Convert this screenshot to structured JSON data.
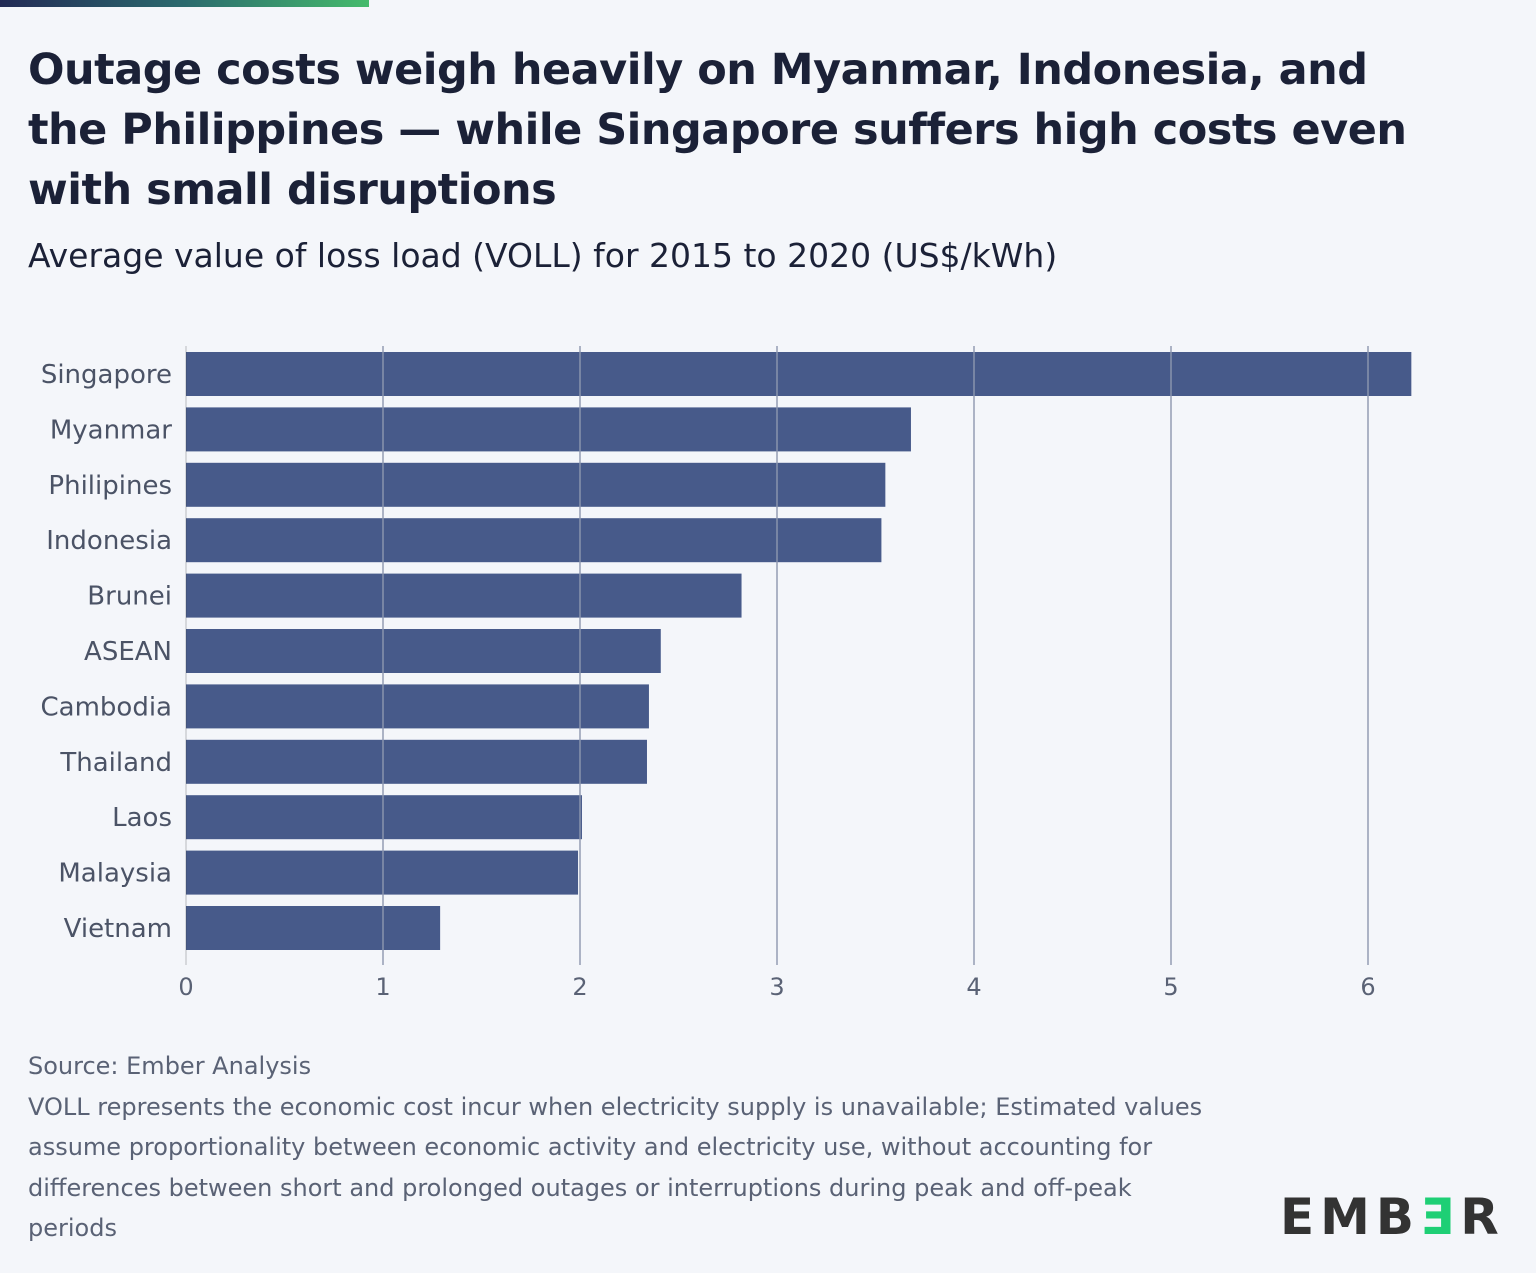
{
  "title": "Outage costs weigh heavily on Myanmar, Indonesia, and the Philippines — while Singapore suffers high costs even with small disruptions",
  "subtitle": "Average value of loss load (VOLL) for 2015 to 2020 (US$/kWh)",
  "footer": {
    "source": "Source: Ember Analysis",
    "note": "VOLL represents the economic cost incur when electricity supply is unavailable; Estimated values assume proportionality between economic activity and electricity use, without accounting for differences between short and prolonged outages or interruptions during peak and off-peak periods"
  },
  "logo": "EMBER",
  "colors": {
    "bar": "#475a8a",
    "grid": "#8e98b0",
    "accent_gradient": [
      "#222a55",
      "#45bb6c"
    ],
    "logo_accent": "#1ecf75"
  },
  "chart_data": {
    "type": "bar",
    "orientation": "horizontal",
    "categories": [
      "Singapore",
      "Myanmar",
      "Philipines",
      "Indonesia",
      "Brunei",
      "ASEAN",
      "Cambodia",
      "Thailand",
      "Laos",
      "Malaysia",
      "Vietnam"
    ],
    "values": [
      6.22,
      3.68,
      3.55,
      3.53,
      2.82,
      2.41,
      2.35,
      2.34,
      2.01,
      1.99,
      1.29
    ],
    "xlim": [
      0,
      6.5
    ],
    "xticks": [
      0,
      1,
      2,
      3,
      4,
      5,
      6
    ],
    "grid": true,
    "xlabel": "",
    "ylabel": ""
  }
}
